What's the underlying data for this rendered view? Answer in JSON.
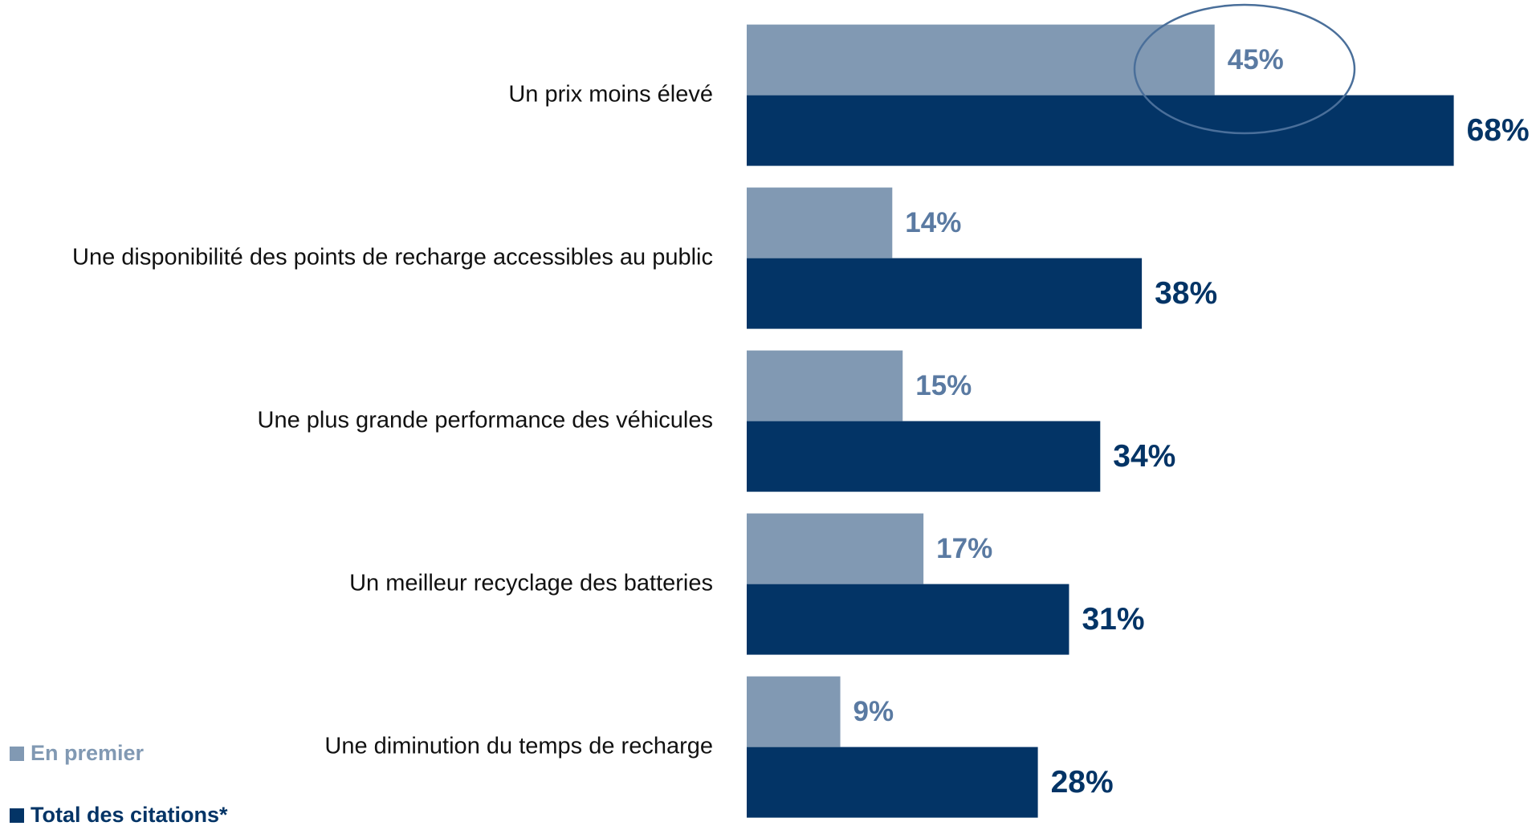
{
  "chart_data": {
    "type": "bar",
    "orientation": "horizontal",
    "categories": [
      "Un prix moins élevé",
      "Une disponibilité des points de recharge accessibles au public",
      "Une plus grande performance des véhicules",
      "Un meilleur recyclage des batteries",
      "Une diminution du temps de recharge"
    ],
    "series": [
      {
        "name": "En premier",
        "color": "#8199b3",
        "values": [
          45,
          14,
          15,
          17,
          9
        ],
        "value_labels": [
          "45%",
          "14%",
          "15%",
          "17%",
          "9%"
        ]
      },
      {
        "name": "Total des citations*",
        "color": "#033466",
        "values": [
          68,
          38,
          34,
          31,
          28
        ],
        "value_labels": [
          "68%",
          "38%",
          "34%",
          "31%",
          "28%"
        ]
      }
    ],
    "legend": "bottom-left"
  }
}
